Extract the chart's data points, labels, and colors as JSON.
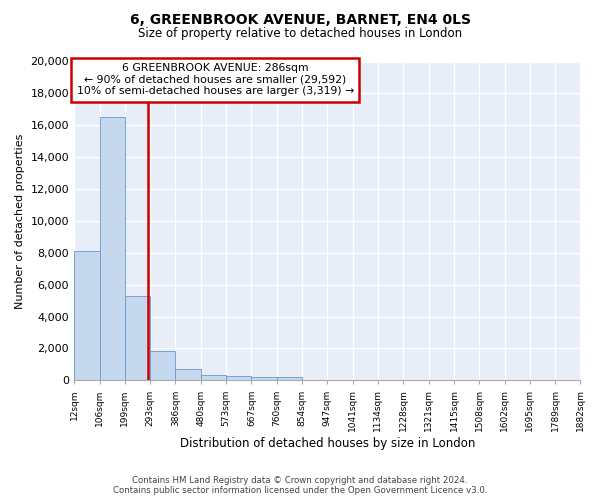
{
  "title": "6, GREENBROOK AVENUE, BARNET, EN4 0LS",
  "subtitle": "Size of property relative to detached houses in London",
  "xlabel": "Distribution of detached houses by size in London",
  "ylabel": "Number of detached properties",
  "bar_color": "#c5d8ed",
  "bar_edge_color": "#6699cc",
  "plot_bg_color": "#e8eef8",
  "fig_bg_color": "#ffffff",
  "grid_color": "#ffffff",
  "vline_color": "#cc0000",
  "annotation_box_color": "#cc0000",
  "annotation_line1": "6 GREENBROOK AVENUE: 286sqm",
  "annotation_line2": "← 90% of detached houses are smaller (29,592)",
  "annotation_line3": "10% of semi-detached houses are larger (3,319) →",
  "bins": [
    12,
    106,
    199,
    293,
    386,
    480,
    573,
    667,
    760,
    854,
    947,
    1041,
    1134,
    1228,
    1321,
    1415,
    1508,
    1602,
    1695,
    1789,
    1882
  ],
  "counts": [
    8100,
    16500,
    5300,
    1850,
    700,
    350,
    280,
    210,
    200,
    0,
    0,
    0,
    0,
    0,
    0,
    0,
    0,
    0,
    0,
    0
  ],
  "tick_labels": [
    "12sqm",
    "106sqm",
    "199sqm",
    "293sqm",
    "386sqm",
    "480sqm",
    "573sqm",
    "667sqm",
    "760sqm",
    "854sqm",
    "947sqm",
    "1041sqm",
    "1134sqm",
    "1228sqm",
    "1321sqm",
    "1415sqm",
    "1508sqm",
    "1602sqm",
    "1695sqm",
    "1789sqm",
    "1882sqm"
  ],
  "ylim": [
    0,
    20000
  ],
  "yticks": [
    0,
    2000,
    4000,
    6000,
    8000,
    10000,
    12000,
    14000,
    16000,
    18000,
    20000
  ],
  "footer_line1": "Contains HM Land Registry data © Crown copyright and database right 2024.",
  "footer_line2": "Contains public sector information licensed under the Open Government Licence v3.0."
}
